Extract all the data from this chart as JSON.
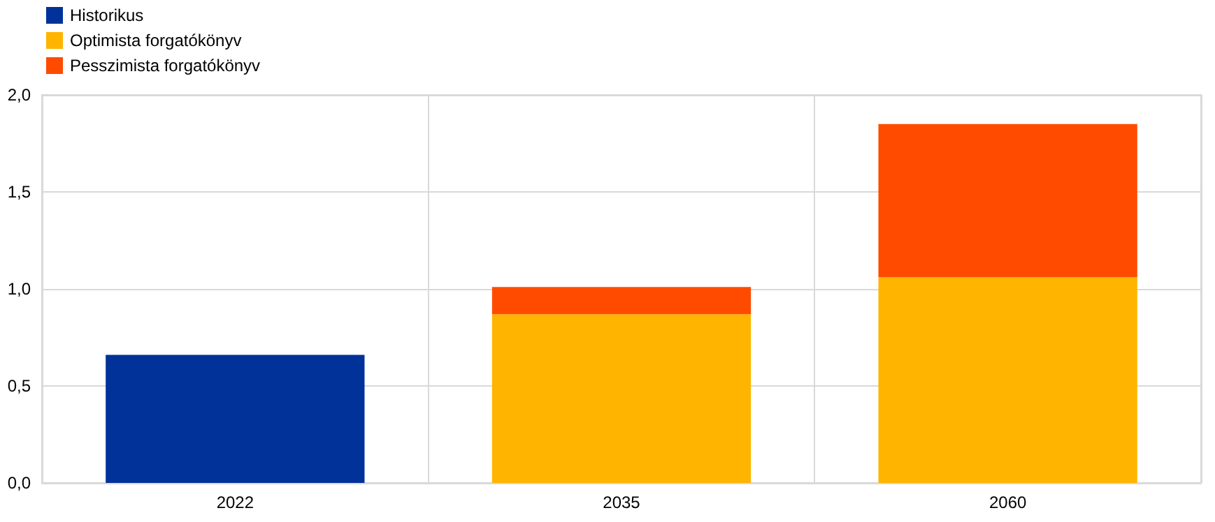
{
  "chart_data": {
    "type": "bar",
    "stacked": true,
    "categories": [
      "2022",
      "2035",
      "2060"
    ],
    "series": [
      {
        "name": "Historikus",
        "color": "#003299",
        "values": [
          0.66,
          null,
          null
        ]
      },
      {
        "name": "Optimista forgatókönyv",
        "color": "#ffb400",
        "values": [
          null,
          0.87,
          1.06
        ]
      },
      {
        "name": "Pesszimista forgatókönyv",
        "color": "#ff4b00",
        "values": [
          null,
          0.14,
          0.79
        ]
      }
    ],
    "ylim": [
      0,
      2
    ],
    "yticks": [
      {
        "value": 0,
        "label": "0,0"
      },
      {
        "value": 0.5,
        "label": "0,5"
      },
      {
        "value": 1,
        "label": "1,0"
      },
      {
        "value": 1.5,
        "label": "1,5"
      },
      {
        "value": 2,
        "label": "2,0"
      }
    ],
    "grid": true,
    "legend": "top left"
  }
}
